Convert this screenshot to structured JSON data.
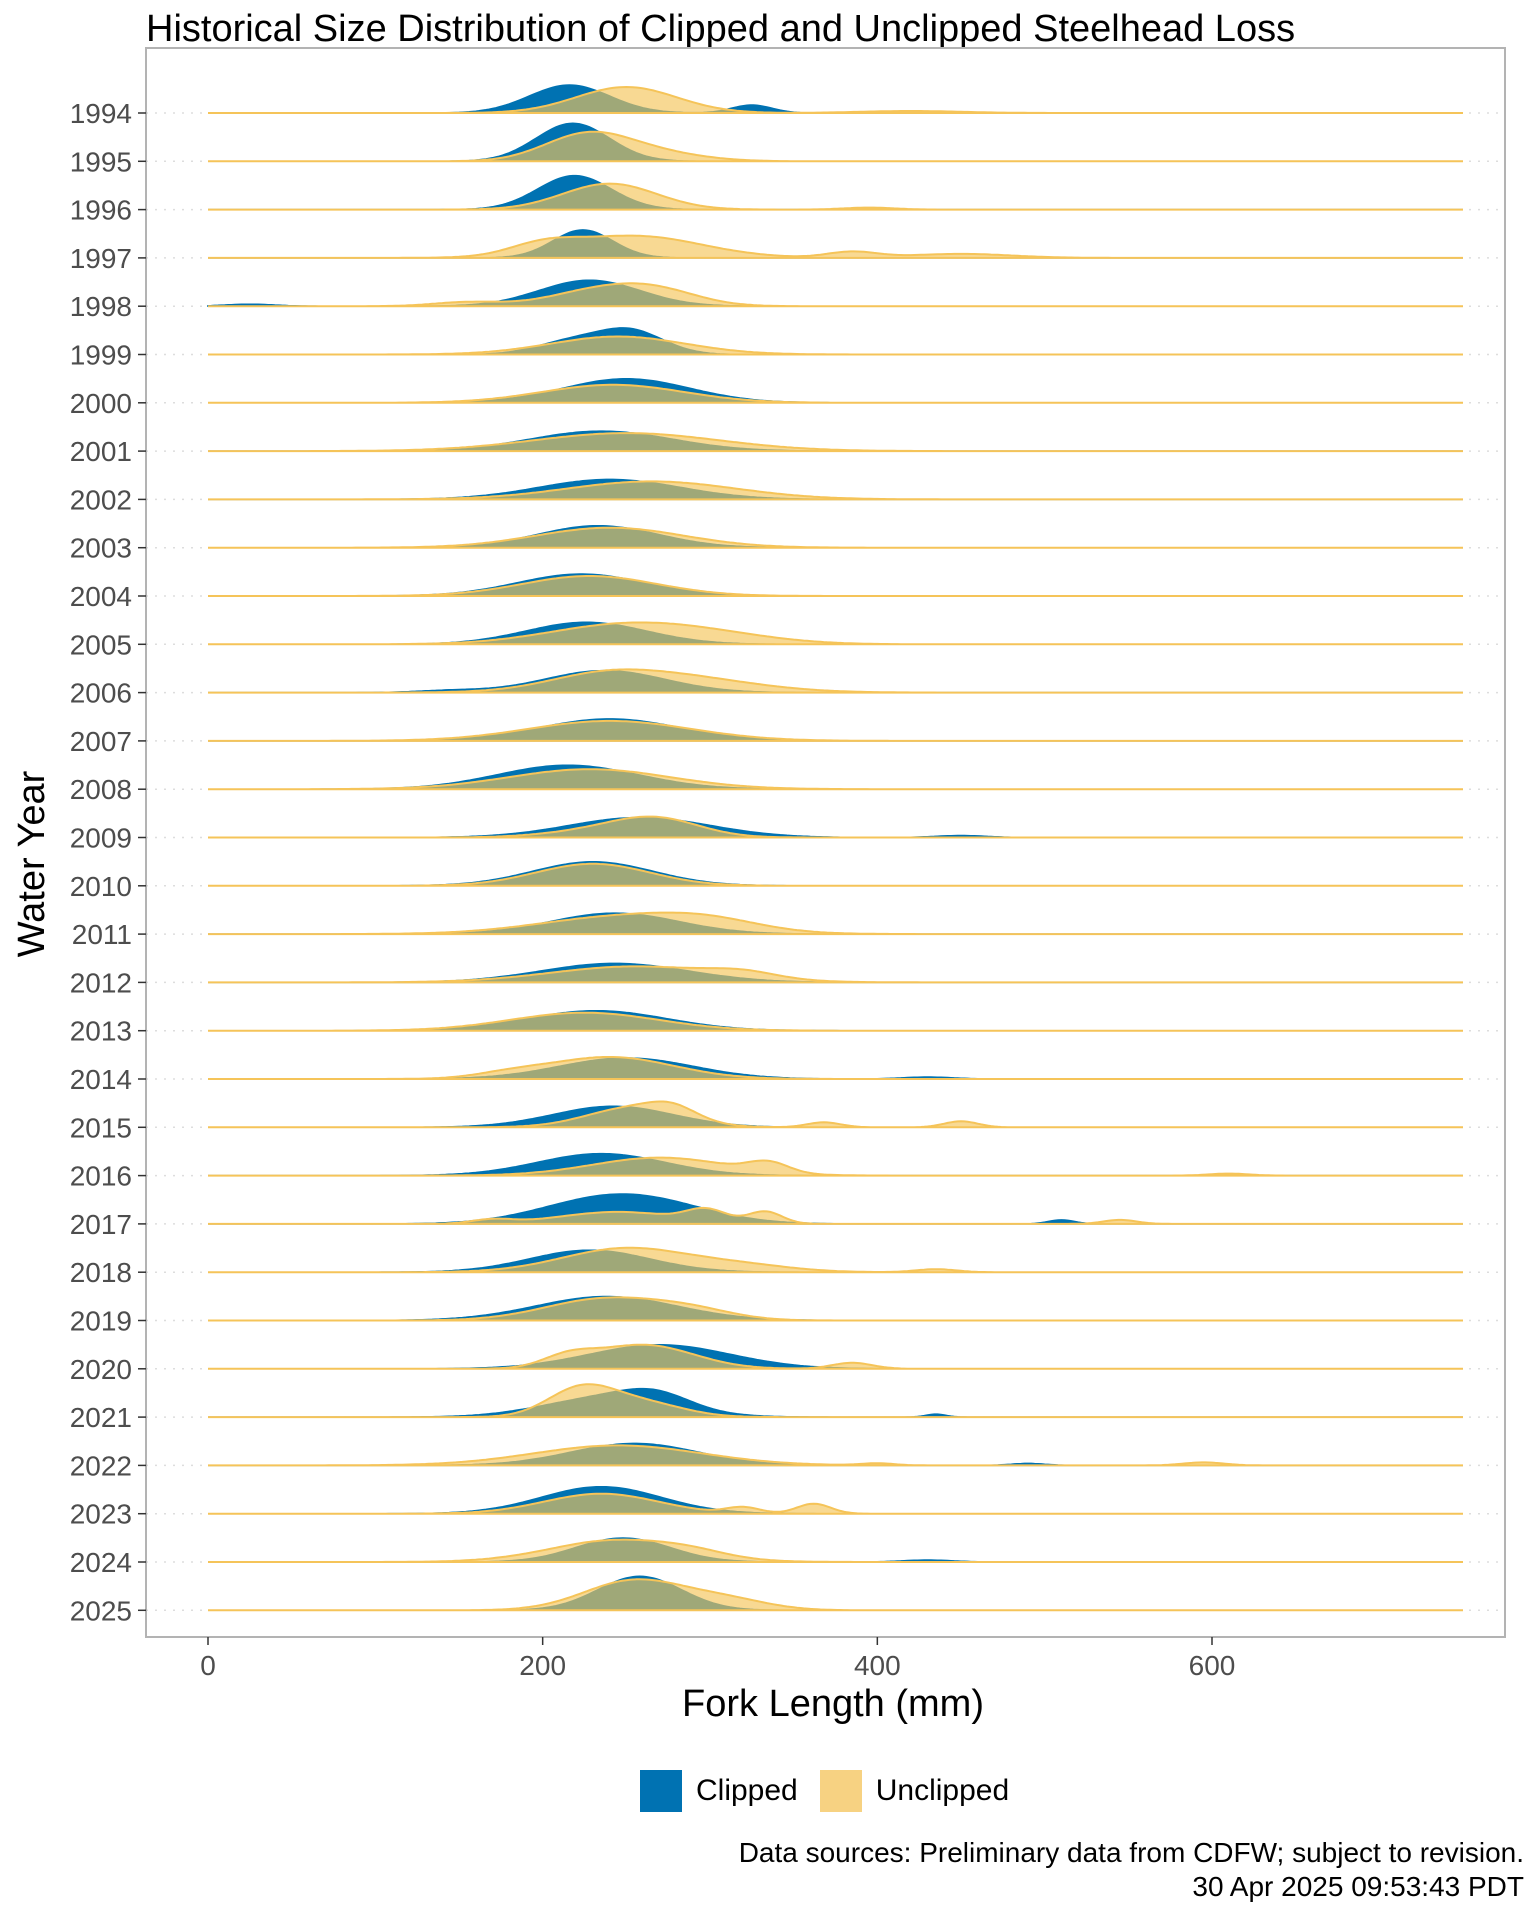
{
  "chart_data": {
    "type": "ridgeline",
    "title": "Historical Size Distribution of Clipped and Unclipped Steelhead Loss",
    "xlabel": "Fork Length (mm)",
    "ylabel": "Water Year",
    "xlim": [
      0,
      750
    ],
    "x_ticks": [
      0,
      200,
      400,
      600
    ],
    "grid": "dotted horizontal baselines",
    "legend_position": "bottom",
    "series": [
      {
        "name": "Clipped",
        "color": "#0072B2"
      },
      {
        "name": "Unclipped",
        "color": "#F5C459"
      }
    ],
    "years": [
      {
        "year": "2025",
        "clipped": [
          [
            258,
            34,
            25
          ]
        ],
        "unclipped": [
          [
            255,
            30,
            30
          ],
          [
            310,
            10,
            25
          ]
        ]
      },
      {
        "year": "2024",
        "clipped": [
          [
            248,
            24,
            28
          ],
          [
            430,
            2,
            15
          ]
        ],
        "unclipped": [
          [
            245,
            22,
            40
          ],
          [
            290,
            4,
            20
          ]
        ]
      },
      {
        "year": "2023",
        "clipped": [
          [
            235,
            27,
            36
          ]
        ],
        "unclipped": [
          [
            235,
            20,
            34
          ],
          [
            320,
            6,
            10
          ],
          [
            362,
            10,
            10
          ]
        ]
      },
      {
        "year": "2022",
        "clipped": [
          [
            255,
            22,
            38
          ],
          [
            490,
            2,
            10
          ]
        ],
        "unclipped": [
          [
            245,
            20,
            50
          ],
          [
            400,
            2,
            10
          ],
          [
            595,
            3,
            12
          ]
        ]
      },
      {
        "year": "2021",
        "clipped": [
          [
            240,
            20,
            38
          ],
          [
            268,
            12,
            20
          ],
          [
            435,
            3,
            6
          ]
        ],
        "unclipped": [
          [
            223,
            28,
            20
          ],
          [
            260,
            14,
            24
          ]
        ]
      },
      {
        "year": "2020",
        "clipped": [
          [
            270,
            24,
            42
          ]
        ],
        "unclipped": [
          [
            260,
            24,
            30
          ],
          [
            215,
            10,
            15
          ],
          [
            385,
            6,
            12
          ]
        ]
      },
      {
        "year": "2019",
        "clipped": [
          [
            238,
            24,
            42
          ]
        ],
        "unclipped": [
          [
            238,
            22,
            36
          ],
          [
            290,
            8,
            25
          ]
        ]
      },
      {
        "year": "2018",
        "clipped": [
          [
            228,
            22,
            36
          ]
        ],
        "unclipped": [
          [
            250,
            24,
            38
          ],
          [
            320,
            6,
            30
          ],
          [
            435,
            3,
            12
          ]
        ]
      },
      {
        "year": "2017",
        "clipped": [
          [
            232,
            20,
            38
          ],
          [
            270,
            14,
            36
          ],
          [
            510,
            4,
            8
          ]
        ],
        "unclipped": [
          [
            245,
            12,
            35
          ],
          [
            298,
            12,
            12
          ],
          [
            333,
            12,
            10
          ],
          [
            170,
            4,
            12
          ],
          [
            545,
            4,
            10
          ]
        ]
      },
      {
        "year": "2016",
        "clipped": [
          [
            235,
            22,
            38
          ]
        ],
        "unclipped": [
          [
            270,
            18,
            40
          ],
          [
            335,
            10,
            12
          ],
          [
            610,
            2,
            12
          ]
        ]
      },
      {
        "year": "2015",
        "clipped": [
          [
            242,
            21,
            36
          ]
        ],
        "unclipped": [
          [
            255,
            20,
            28
          ],
          [
            278,
            10,
            14
          ],
          [
            368,
            5,
            10
          ],
          [
            450,
            6,
            10
          ]
        ]
      },
      {
        "year": "2014",
        "clipped": [
          [
            250,
            21,
            40
          ],
          [
            430,
            2,
            15
          ]
        ],
        "unclipped": [
          [
            240,
            22,
            38
          ],
          [
            180,
            4,
            20
          ]
        ]
      },
      {
        "year": "2013",
        "clipped": [
          [
            232,
            20,
            42
          ]
        ],
        "unclipped": [
          [
            225,
            18,
            44
          ]
        ]
      },
      {
        "year": "2012",
        "clipped": [
          [
            243,
            19,
            44
          ]
        ],
        "unclipped": [
          [
            255,
            16,
            50
          ],
          [
            320,
            6,
            20
          ]
        ]
      },
      {
        "year": "2011",
        "clipped": [
          [
            243,
            21,
            38
          ]
        ],
        "unclipped": [
          [
            250,
            18,
            50
          ],
          [
            300,
            8,
            30
          ]
        ]
      },
      {
        "year": "2010",
        "clipped": [
          [
            230,
            24,
            36
          ]
        ],
        "unclipped": [
          [
            230,
            22,
            34
          ]
        ]
      },
      {
        "year": "2009",
        "clipped": [
          [
            258,
            20,
            42
          ],
          [
            450,
            2,
            15
          ]
        ],
        "unclipped": [
          [
            268,
            18,
            26
          ],
          [
            230,
            6,
            30
          ]
        ]
      },
      {
        "year": "2008",
        "clipped": [
          [
            215,
            24,
            42
          ]
        ],
        "unclipped": [
          [
            228,
            20,
            48
          ]
        ]
      },
      {
        "year": "2007",
        "clipped": [
          [
            240,
            22,
            42
          ]
        ],
        "unclipped": [
          [
            240,
            20,
            48
          ]
        ]
      },
      {
        "year": "2006",
        "clipped": [
          [
            237,
            22,
            36
          ],
          [
            145,
            2,
            20
          ]
        ],
        "unclipped": [
          [
            270,
            18,
            48
          ],
          [
            232,
            8,
            30
          ]
        ]
      },
      {
        "year": "2005",
        "clipped": [
          [
            226,
            22,
            36
          ]
        ],
        "unclipped": [
          [
            245,
            18,
            44
          ],
          [
            300,
            8,
            40
          ]
        ]
      },
      {
        "year": "2004",
        "clipped": [
          [
            223,
            22,
            38
          ]
        ],
        "unclipped": [
          [
            228,
            20,
            40
          ]
        ]
      },
      {
        "year": "2003",
        "clipped": [
          [
            233,
            22,
            36
          ]
        ],
        "unclipped": [
          [
            240,
            20,
            44
          ]
        ]
      },
      {
        "year": "2002",
        "clipped": [
          [
            240,
            20,
            42
          ]
        ],
        "unclipped": [
          [
            265,
            18,
            50
          ]
        ]
      },
      {
        "year": "2001",
        "clipped": [
          [
            235,
            20,
            42
          ]
        ],
        "unclipped": [
          [
            250,
            18,
            55
          ]
        ]
      },
      {
        "year": "2000",
        "clipped": [
          [
            250,
            24,
            38
          ]
        ],
        "unclipped": [
          [
            242,
            18,
            42
          ]
        ]
      },
      {
        "year": "1999",
        "clipped": [
          [
            252,
            24,
            20
          ],
          [
            215,
            12,
            20
          ]
        ],
        "unclipped": [
          [
            245,
            18,
            40
          ]
        ]
      },
      {
        "year": "1998",
        "clipped": [
          [
            228,
            26,
            30
          ],
          [
            25,
            2,
            15
          ]
        ],
        "unclipped": [
          [
            235,
            16,
            30
          ],
          [
            270,
            12,
            25
          ],
          [
            155,
            4,
            20
          ]
        ]
      },
      {
        "year": "1997",
        "clipped": [
          [
            224,
            28,
            18
          ]
        ],
        "unclipped": [
          [
            255,
            22,
            40
          ],
          [
            200,
            10,
            20
          ],
          [
            385,
            6,
            15
          ],
          [
            450,
            4,
            30
          ]
        ]
      },
      {
        "year": "1996",
        "clipped": [
          [
            219,
            34,
            22
          ]
        ],
        "unclipped": [
          [
            240,
            26,
            28
          ],
          [
            395,
            2,
            15
          ]
        ]
      },
      {
        "year": "1995",
        "clipped": [
          [
            218,
            38,
            22
          ]
        ],
        "unclipped": [
          [
            225,
            24,
            25
          ],
          [
            260,
            10,
            30
          ]
        ]
      },
      {
        "year": "1994",
        "clipped": [
          [
            216,
            28,
            24
          ],
          [
            325,
            8,
            12
          ]
        ],
        "unclipped": [
          [
            250,
            26,
            30
          ],
          [
            420,
            2,
            30
          ]
        ]
      }
    ]
  },
  "legend": {
    "items": [
      {
        "label": "Clipped",
        "color": "#0072B2"
      },
      {
        "label": "Unclipped",
        "color": "#F5C459"
      }
    ]
  },
  "caption": {
    "line1": "Data sources: Preliminary data from CDFW; subject to revision.",
    "line2": "30 Apr 2025 09:53:43 PDT"
  }
}
